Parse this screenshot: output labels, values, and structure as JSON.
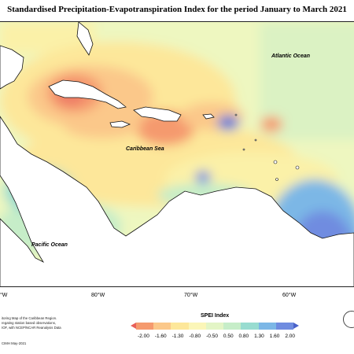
{
  "title": "Standardised Precipitation-Evapotranspiration Index for the period January to March 2021",
  "map_labels": {
    "atlantic": "Atlantic Ocean",
    "caribbean": "Caribbean Sea",
    "pacific": "Pacific Ocean"
  },
  "longitude_labels": [
    "°W",
    "80°W",
    "70°W",
    "60°W"
  ],
  "footer": {
    "line1": "itoring Map of the Caribbean Region.",
    "line2": "regating station based observations,",
    "line3": "IOF, with NCEP/NCAR Reanalysis Data",
    "date": "CIMH May-2021"
  },
  "legend": {
    "title": "SPEI Index",
    "ticks": [
      "-2.00",
      "-1.60",
      "-1.30",
      "-0.80",
      "-0.50",
      "0.50",
      "0.80",
      "1.30",
      "1.60",
      "2.00"
    ],
    "colors": [
      "#e8605a",
      "#f59a6e",
      "#fbc88a",
      "#fde79a",
      "#fbf6b8",
      "#e3f5c6",
      "#c6edc8",
      "#98dcd0",
      "#7cb7e6",
      "#6f8ce0",
      "#4a62c9"
    ]
  }
}
